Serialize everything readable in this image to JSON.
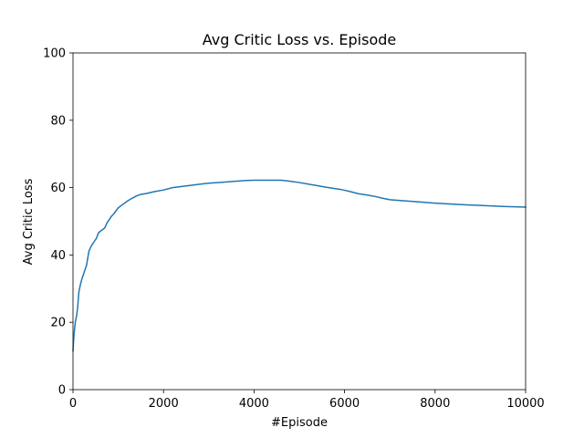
{
  "chart_data": {
    "type": "line",
    "title": "Avg Critic Loss vs. Episode",
    "xlabel": "#Episode",
    "ylabel": "Avg Critic Loss",
    "xlim": [
      0,
      10000
    ],
    "ylim": [
      0,
      100
    ],
    "xticks": [
      0,
      2000,
      4000,
      6000,
      8000,
      10000
    ],
    "yticks": [
      0,
      20,
      40,
      60,
      80,
      100
    ],
    "grid": false,
    "series": [
      {
        "color": "#1f77b4",
        "x": [
          0,
          20,
          50,
          80,
          100,
          130,
          160,
          200,
          250,
          300,
          350,
          380,
          420,
          470,
          520,
          560,
          600,
          650,
          700,
          750,
          800,
          850,
          900,
          1000,
          1100,
          1200,
          1300,
          1400,
          1500,
          1600,
          1700,
          1800,
          2000,
          2200,
          2500,
          2800,
          3000,
          3300,
          3600,
          3800,
          4000,
          4300,
          4600,
          4800,
          5000,
          5300,
          5600,
          5900,
          6100,
          6300,
          6500,
          6700,
          6850,
          7000,
          7500,
          8000,
          8500,
          9000,
          9500,
          10000
        ],
        "y": [
          11.5,
          16,
          20,
          22,
          24,
          29,
          31,
          33,
          35,
          37,
          41,
          42,
          43,
          44,
          45,
          46.5,
          47,
          47.5,
          48,
          49.5,
          50.5,
          51.5,
          52.2,
          54,
          55,
          56,
          56.8,
          57.5,
          58,
          58.2,
          58.5,
          58.8,
          59.3,
          60,
          60.5,
          61,
          61.3,
          61.6,
          61.9,
          62.1,
          62.2,
          62.2,
          62.2,
          61.9,
          61.5,
          60.8,
          60.1,
          59.5,
          58.9,
          58.2,
          57.8,
          57.3,
          56.8,
          56.4,
          55.9,
          55.4,
          55.0,
          54.7,
          54.4,
          54.2
        ]
      }
    ]
  }
}
